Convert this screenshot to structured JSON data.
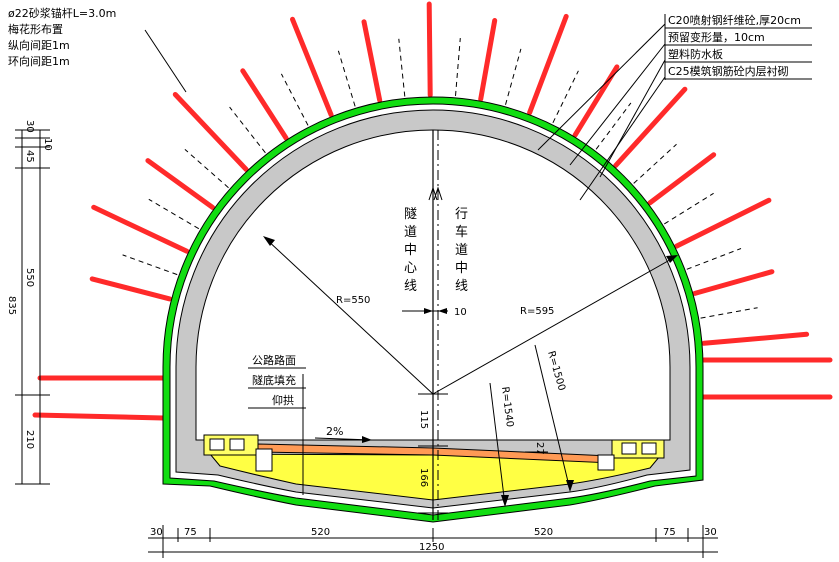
{
  "labels": {
    "anchor": [
      "ø22砂浆锚杆L=3.0m",
      "梅花形布置",
      "纵向间距1m",
      "环向间距1m"
    ],
    "layers": [
      "C20喷射钢纤维砼,厚20cm",
      "预留变形量，10cm",
      "塑料防水板",
      "C25模筑钢筋砼内层衬砌"
    ],
    "fill": [
      "公路路面",
      "隧底填充",
      "仰拱"
    ],
    "tunnel_center": [
      "隧",
      "道",
      "中",
      "心",
      "线"
    ],
    "lane_center": [
      "行",
      "车",
      "道",
      "中",
      "线"
    ],
    "r550": "R=550",
    "r595": "R=595",
    "r1500": "R=1500",
    "r1540": "R=1540",
    "slope": "2%",
    "offset10": "10",
    "dim27": "27"
  },
  "dims_left": {
    "d30": "30",
    "d10": "10",
    "d45": "45",
    "d550": "550",
    "d835": "835",
    "d210": "210"
  },
  "dims_center": {
    "d115": "115",
    "d166": "166"
  },
  "dims_bottom": {
    "segments": [
      "30",
      "75",
      "520",
      "520",
      "75",
      "30"
    ],
    "total": "1250"
  },
  "colors": {
    "bolt": "#ff2a2a",
    "waterproof": "#11dd11",
    "lining": "#c8c8c8",
    "fill": "#ffff44",
    "pavement": "#ff9a55",
    "drain": "#ffff66"
  }
}
